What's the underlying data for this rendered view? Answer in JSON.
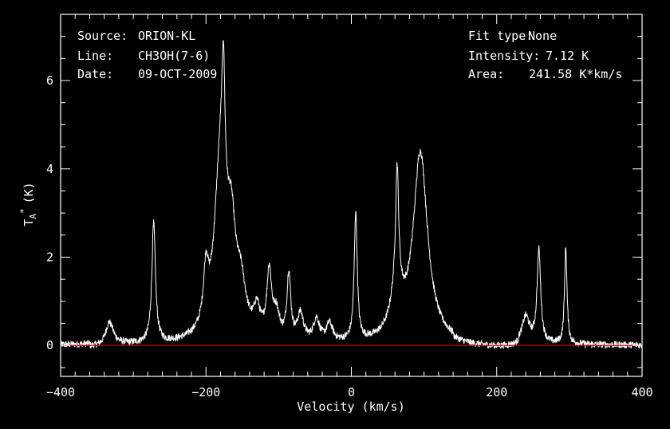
{
  "chart_data": {
    "type": "line",
    "title": "",
    "xlabel": "Velocity (km/s)",
    "ylabel_main": "T",
    "ylabel_sub": "A",
    "ylabel_sup": "*",
    "ylabel_unit": "(K)",
    "xlim": [
      -400,
      400
    ],
    "ylim": [
      -0.7,
      7.5
    ],
    "x_ticks": [
      -400,
      -200,
      0,
      200,
      400
    ],
    "y_ticks": [
      0,
      2,
      4,
      6
    ],
    "baseline": 0,
    "colors": {
      "background": "#000000",
      "spectrum": "#ffffff",
      "baseline": "#cc0000",
      "frame": "#ffffff"
    },
    "series": [
      {
        "noise_amplitude": 0.08,
        "peaks": [
          {
            "center": -333,
            "height": 0.55,
            "width": 6
          },
          {
            "center": -272,
            "height": 2.7,
            "width": 3
          },
          {
            "center": -200,
            "height": 1.2,
            "width": 4
          },
          {
            "center": -180,
            "height": 4.0,
            "width": 10
          },
          {
            "center": -176,
            "height": 2.8,
            "width": 2.5
          },
          {
            "center": -165,
            "height": 1.9,
            "width": 7
          },
          {
            "center": -152,
            "height": 1.0,
            "width": 8
          },
          {
            "center": -130,
            "height": 0.6,
            "width": 5
          },
          {
            "center": -113,
            "height": 1.5,
            "width": 4
          },
          {
            "center": -103,
            "height": 0.55,
            "width": 5
          },
          {
            "center": -86,
            "height": 1.5,
            "width": 3
          },
          {
            "center": -70,
            "height": 0.6,
            "width": 5
          },
          {
            "center": -48,
            "height": 0.5,
            "width": 5
          },
          {
            "center": -30,
            "height": 0.4,
            "width": 5
          },
          {
            "center": 6,
            "height": 2.9,
            "width": 2.5
          },
          {
            "center": 63,
            "height": 2.7,
            "width": 2.5
          },
          {
            "center": 62,
            "height": 0.9,
            "width": 10
          },
          {
            "center": 95,
            "height": 4.3,
            "width": 12
          },
          {
            "center": 240,
            "height": 0.6,
            "width": 6
          },
          {
            "center": 258,
            "height": 2.1,
            "width": 3
          },
          {
            "center": 295,
            "height": 2.2,
            "width": 2
          }
        ]
      }
    ]
  },
  "info_left": [
    {
      "key": "Source:",
      "value": "ORION-KL"
    },
    {
      "key": "Line:",
      "value": "CH3OH(7-6)"
    },
    {
      "key": "Date:",
      "value": "09-OCT-2009"
    }
  ],
  "info_right": [
    {
      "key": "Fit type:",
      "value": "None"
    },
    {
      "key": "Intensity:",
      "value": "7.12 K"
    },
    {
      "key": "Area:",
      "value": "241.58 K*km/s"
    }
  ]
}
